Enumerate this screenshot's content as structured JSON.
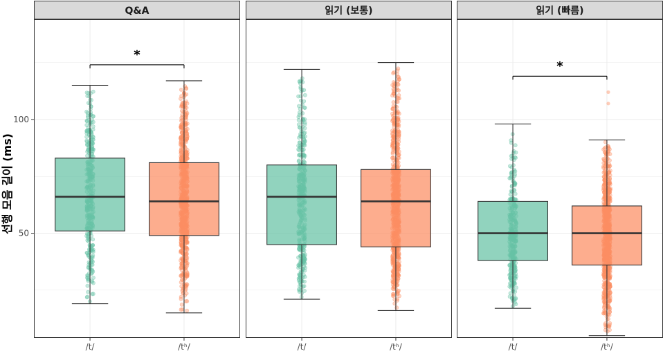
{
  "chart_data": {
    "type": "boxplot",
    "ylabel": "선행 모음 길이 (ms)",
    "xlabel": "",
    "ylim": [
      4,
      144
    ],
    "yticks": [
      50,
      100
    ],
    "categories": [
      "/t/",
      "/tʰ/"
    ],
    "colors": {
      "/t/": "#66c2a5",
      "/tʰ/": "#fc8d62"
    },
    "panels": [
      {
        "title": "Q&A",
        "boxes": [
          {
            "category": "/t/",
            "whisker_low": 19,
            "q1": 51,
            "median": 66,
            "q3": 83,
            "whisker_high": 115,
            "n": 360,
            "outliers": []
          },
          {
            "category": "/tʰ/",
            "whisker_low": 15,
            "q1": 49,
            "median": 64,
            "q3": 81,
            "whisker_high": 117,
            "n": 720,
            "outliers": []
          }
        ],
        "significance": {
          "label": "*",
          "level": 124
        }
      },
      {
        "title": "읽기 (보통)",
        "boxes": [
          {
            "category": "/t/",
            "whisker_low": 21,
            "q1": 45,
            "median": 66,
            "q3": 80,
            "whisker_high": 122,
            "n": 380,
            "outliers": []
          },
          {
            "category": "/tʰ/",
            "whisker_low": 16,
            "q1": 44,
            "median": 64,
            "q3": 78,
            "whisker_high": 125,
            "n": 720,
            "outliers": []
          }
        ],
        "significance": null
      },
      {
        "title": "읽기 (빠름)",
        "boxes": [
          {
            "category": "/t/",
            "whisker_low": 17,
            "q1": 38,
            "median": 50,
            "q3": 64,
            "whisker_high": 98,
            "n": 340,
            "outliers": []
          },
          {
            "category": "/tʰ/",
            "whisker_low": 5,
            "q1": 36,
            "median": 50,
            "q3": 62,
            "whisker_high": 91,
            "n": 720,
            "outliers": [
              112,
              107
            ]
          }
        ],
        "significance": {
          "label": "*",
          "level": 119
        }
      }
    ]
  }
}
